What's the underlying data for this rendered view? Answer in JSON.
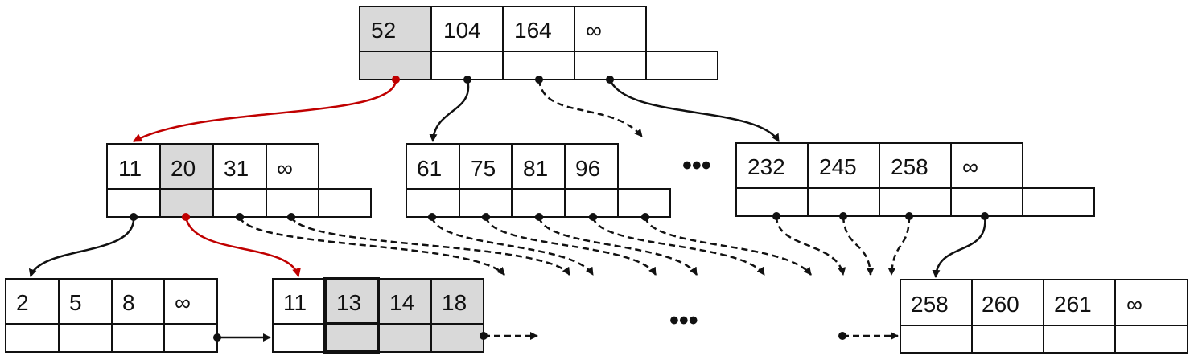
{
  "colors": {
    "stroke": "#111111",
    "highlight_fill": "#d9d9d9",
    "search_path": "#c00000",
    "background": "#ffffff"
  },
  "ellipsis": [
    "•••",
    "•••"
  ],
  "nodes": {
    "root": {
      "keys": [
        "52",
        "104",
        "164",
        "∞"
      ],
      "highlight_key_index": 0
    },
    "internal_left": {
      "keys": [
        "11",
        "20",
        "31",
        "∞"
      ],
      "highlight_key_index": 1
    },
    "internal_mid": {
      "keys": [
        "61",
        "75",
        "81",
        "96"
      ]
    },
    "internal_right": {
      "keys": [
        "232",
        "245",
        "258",
        "∞"
      ]
    },
    "leaf_1": {
      "keys": [
        "2",
        "5",
        "8",
        "∞"
      ]
    },
    "leaf_2": {
      "keys": [
        "11",
        "13",
        "14",
        "18"
      ],
      "highlight_from_index": 1,
      "selected_key_index": 1
    },
    "leaf_last": {
      "keys": [
        "258",
        "260",
        "261",
        "∞"
      ]
    }
  }
}
